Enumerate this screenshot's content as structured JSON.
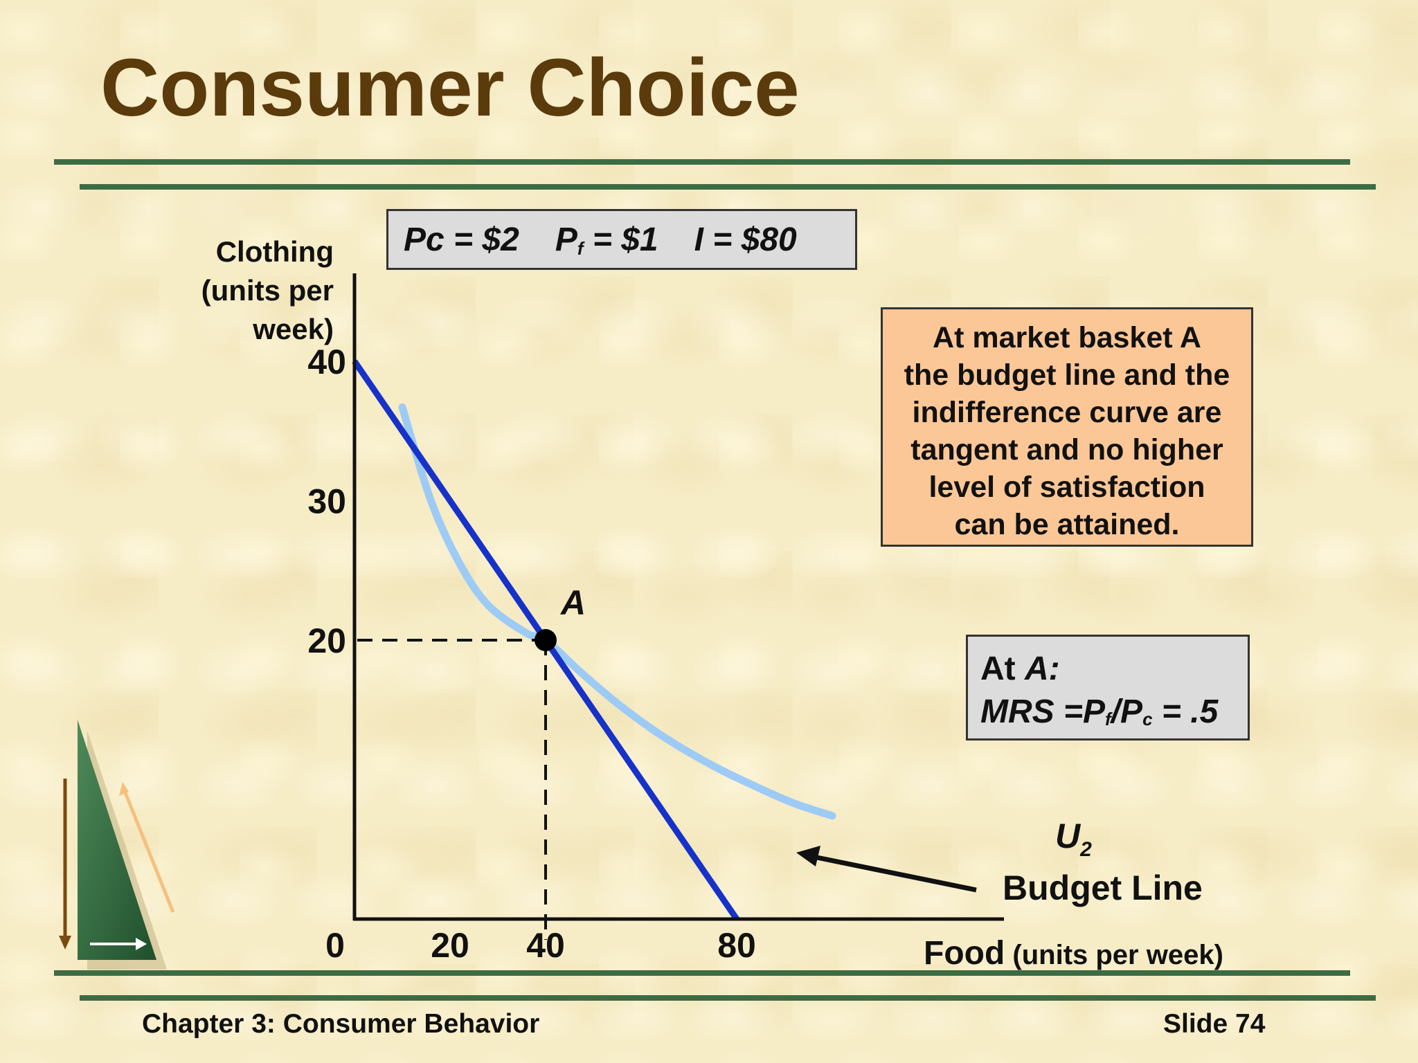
{
  "slide": {
    "title": "Consumer Choice",
    "footer_left": "Chapter 3: Consumer Behavior",
    "footer_right": "Slide 74"
  },
  "price_box": {
    "pc": "Pc = $2",
    "pf_main": "P",
    "pf_sub": "f",
    "pf_rest": " = $1",
    "income": "I = $80"
  },
  "note": "At market basket A\nthe budget line and the\nindifference curve are\ntangent and no higher\nlevel of satisfaction\ncan be attained.",
  "mrs": {
    "line1": "At A:",
    "mrs_main": "MRS =P",
    "mrs_sub_f": "f",
    "mrs_slash": "/P",
    "mrs_sub_c": "c",
    "mrs_value": " = .5"
  },
  "chart_data": {
    "type": "line",
    "ylabel": "Clothing\n(units per\nweek)",
    "xlabel_bold": "Food",
    "xlabel_rest": " (units per week)",
    "origin_label": "0",
    "x_ticks": [
      20,
      40,
      80
    ],
    "y_ticks": [
      20,
      30,
      40
    ],
    "xlim": [
      0,
      104
    ],
    "ylim": [
      0,
      45
    ],
    "budget_line": {
      "name": "Budget Line",
      "x": [
        0,
        80
      ],
      "y": [
        40,
        0
      ]
    },
    "indifference_curve": {
      "name": "U2",
      "points": [
        [
          10,
          36.7
        ],
        [
          16,
          30
        ],
        [
          22,
          25.5
        ],
        [
          28,
          22.5
        ],
        [
          36,
          20.5
        ],
        [
          40,
          20
        ],
        [
          48,
          17.5
        ],
        [
          56,
          15.2
        ],
        [
          65,
          13
        ],
        [
          75,
          11
        ],
        [
          84,
          9.5
        ],
        [
          92,
          8.3
        ],
        [
          100,
          7.4
        ]
      ]
    },
    "point_A": {
      "label": "A",
      "x": 40,
      "y": 20
    },
    "u_label_main": "U",
    "u_label_sub": "2"
  }
}
